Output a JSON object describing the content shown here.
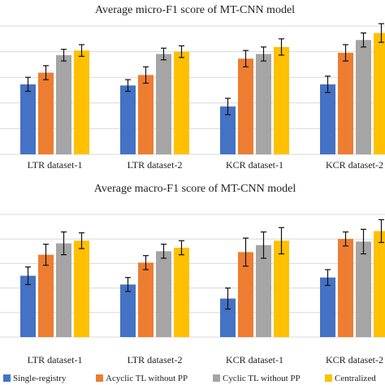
{
  "chart_data": [
    {
      "type": "bar",
      "title": "Average micro-F1 score of MT-CNN model",
      "categories": [
        "LTR dataset-1",
        "LTR dataset-2",
        "KCR dataset-1",
        "KCR dataset-2"
      ],
      "series": [
        {
          "name": "Single-registry",
          "color": "#4472C4",
          "values": [
            0.6,
            0.59,
            0.41,
            0.6
          ],
          "errors": [
            0.06,
            0.05,
            0.07,
            0.07
          ]
        },
        {
          "name": "Acyclic TL without PP",
          "color": "#ED7D31",
          "values": [
            0.7,
            0.68,
            0.82,
            0.87
          ],
          "errors": [
            0.06,
            0.07,
            0.07,
            0.07
          ]
        },
        {
          "name": "Cyclic TL without PP",
          "color": "#A5A5A5",
          "values": [
            0.85,
            0.86,
            0.86,
            0.98
          ],
          "errors": [
            0.05,
            0.05,
            0.06,
            0.06
          ]
        },
        {
          "name": "Centralized",
          "color": "#FFC000",
          "values": [
            0.89,
            0.88,
            0.92,
            1.04
          ],
          "errors": [
            0.05,
            0.05,
            0.07,
            0.08
          ]
        }
      ],
      "ylim": [
        0,
        1.1
      ],
      "grid": true,
      "xlabel": "",
      "ylabel": ""
    },
    {
      "type": "bar",
      "title": "Average macro-F1 score of MT-CNN model",
      "categories": [
        "LTR dataset-1",
        "LTR dataset-2",
        "KCR dataset-1",
        "KCR dataset-2"
      ],
      "series": [
        {
          "name": "Single-registry",
          "color": "#4472C4",
          "values": [
            0.7,
            0.6,
            0.44,
            0.68
          ],
          "errors": [
            0.1,
            0.08,
            0.12,
            0.09
          ]
        },
        {
          "name": "Acyclic TL without PP",
          "color": "#ED7D31",
          "values": [
            0.94,
            0.85,
            0.97,
            1.12
          ],
          "errors": [
            0.12,
            0.08,
            0.16,
            0.08
          ]
        },
        {
          "name": "Cyclic TL without PP",
          "color": "#A5A5A5",
          "values": [
            1.07,
            0.98,
            1.05,
            1.09
          ],
          "errors": [
            0.13,
            0.08,
            0.15,
            0.14
          ]
        },
        {
          "name": "Centralized",
          "color": "#FFC000",
          "values": [
            1.1,
            1.02,
            1.1,
            1.21
          ],
          "errors": [
            0.09,
            0.08,
            0.15,
            0.13
          ]
        }
      ],
      "ylim": [
        0,
        1.4
      ],
      "grid": true,
      "xlabel": "",
      "ylabel": ""
    }
  ]
}
